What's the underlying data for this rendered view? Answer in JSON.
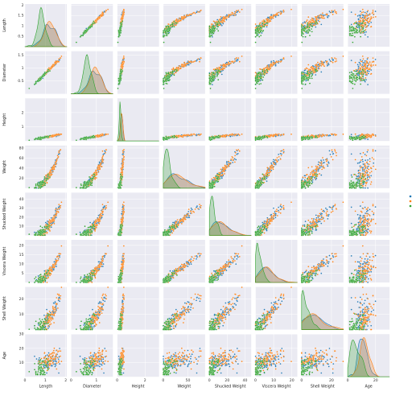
{
  "chart_data": {
    "type": "pairplot",
    "variables": [
      "Length",
      "Diameter",
      "Height",
      "Weight",
      "Shucked Weight",
      "Viscera Weight",
      "Shell Weight",
      "Age"
    ],
    "axis_labels": [
      "Length",
      "Diameter",
      "Height",
      "Weight",
      "Shucked Weight",
      "Viscera Weight",
      "Shell Weight",
      "Age"
    ],
    "ranges": [
      [
        0,
        2.05
      ],
      [
        0,
        1.65
      ],
      [
        0,
        3.0
      ],
      [
        0,
        85
      ],
      [
        0,
        47
      ],
      [
        0,
        23
      ],
      [
        0,
        28
      ],
      [
        0,
        30
      ]
    ],
    "x_ticks": [
      [
        0,
        1,
        2
      ],
      [
        0,
        1
      ],
      [
        0,
        2
      ],
      [
        0,
        50
      ],
      [
        0,
        20,
        40
      ],
      [
        0,
        10,
        20
      ],
      [
        0,
        20
      ],
      [
        0,
        20
      ]
    ],
    "y_ticks": [
      [
        0.5,
        1.0,
        1.5,
        2.0
      ],
      [
        0.5,
        1.0,
        1.5
      ],
      [
        1,
        2
      ],
      [
        20,
        40,
        60,
        80
      ],
      [
        10,
        20,
        30,
        40
      ],
      [
        5,
        10,
        15,
        20
      ],
      [
        10,
        20
      ],
      [
        10,
        20,
        30
      ]
    ],
    "diagonal": "kde",
    "offdiagonal": "scatter",
    "grid": true,
    "legend": "right",
    "series": [
      {
        "color": "#1f77b4",
        "means": [
          1.4,
          1.1,
          0.38,
          34,
          14,
          7.5,
          9.5,
          11.5
        ]
      },
      {
        "color": "#ff7f0e",
        "means": [
          1.43,
          1.12,
          0.39,
          36,
          15,
          7.8,
          10.0,
          12.0
        ]
      },
      {
        "color": "#2ca02c",
        "means": [
          0.95,
          0.73,
          0.25,
          11,
          5,
          2.5,
          3.5,
          8.0
        ]
      }
    ]
  }
}
